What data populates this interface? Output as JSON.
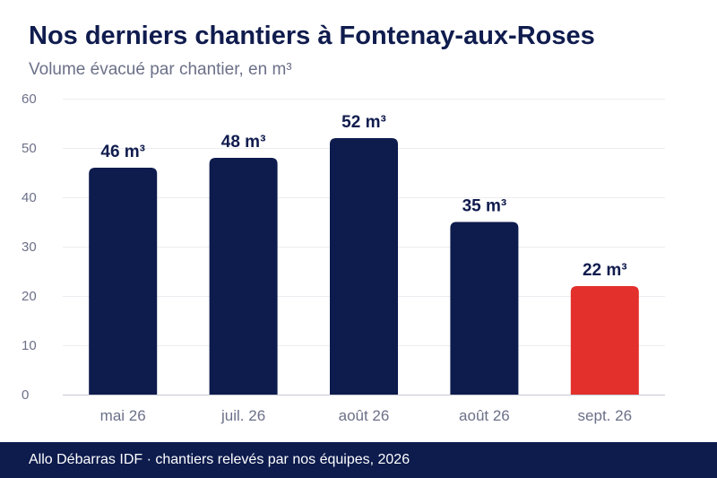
{
  "chart_data": {
    "type": "bar",
    "title": "Nos derniers chantiers à Fontenay-aux-Roses",
    "subtitle": "Volume évacué par chantier, en m³",
    "categories": [
      "mai 26",
      "juil. 26",
      "août 26",
      "août 26",
      "sept. 26"
    ],
    "values": [
      46,
      48,
      52,
      35,
      22
    ],
    "value_labels": [
      "46 m³",
      "48 m³",
      "52 m³",
      "35 m³",
      "22 m³"
    ],
    "y_ticks": [
      0,
      10,
      20,
      30,
      40,
      50,
      60
    ],
    "ylim": [
      0,
      60
    ],
    "grid": true,
    "bar_colors": [
      "#0d1b4d",
      "#0d1b4d",
      "#0d1b4d",
      "#0d1b4d",
      "#e3302c"
    ]
  },
  "footer": {
    "text": "Allo Débarras IDF · chantiers relevés par nos équipes, 2026"
  }
}
